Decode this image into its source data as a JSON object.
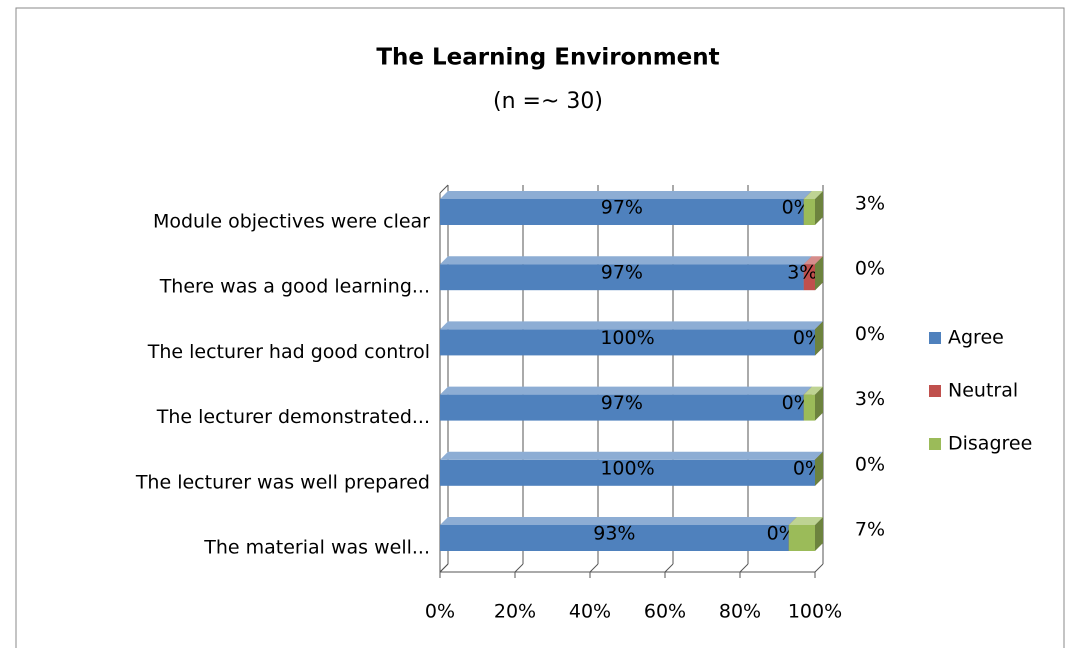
{
  "chart_data": {
    "type": "bar",
    "orientation": "horizontal",
    "stacked": true,
    "title": "The Learning Environment",
    "subtitle": "(n =~ 30)",
    "categories": [
      "Module objectives were clear",
      "There was a good learning...",
      "The lecturer had good control",
      "The lecturer demonstrated...",
      "The lecturer was well prepared",
      "The material was well..."
    ],
    "series": [
      {
        "name": "Agree",
        "color": "#4f81bd",
        "values": [
          97,
          97,
          100,
          97,
          100,
          93
        ],
        "value_labels": [
          "97%",
          "97%",
          "100%",
          "97%",
          "100%",
          "93%"
        ]
      },
      {
        "name": "Neutral",
        "color": "#c0504d",
        "values": [
          0,
          3,
          0,
          0,
          0,
          0
        ],
        "value_labels": [
          "0%",
          "3%",
          "0%",
          "0%",
          "0%",
          "0%"
        ]
      },
      {
        "name": "Disagree",
        "color": "#9bbb59",
        "values": [
          3,
          0,
          0,
          3,
          0,
          7
        ],
        "value_labels": [
          "3%",
          "0%",
          "0%",
          "3%",
          "0%",
          "7%"
        ]
      }
    ],
    "xlim": [
      0,
      100
    ],
    "xticks": [
      {
        "value": 0,
        "label": "0%"
      },
      {
        "value": 20,
        "label": "20%"
      },
      {
        "value": 40,
        "label": "40%"
      },
      {
        "value": 60,
        "label": "60%"
      },
      {
        "value": 80,
        "label": "80%"
      },
      {
        "value": 100,
        "label": "100%"
      }
    ],
    "grid": true,
    "legend": "right"
  }
}
